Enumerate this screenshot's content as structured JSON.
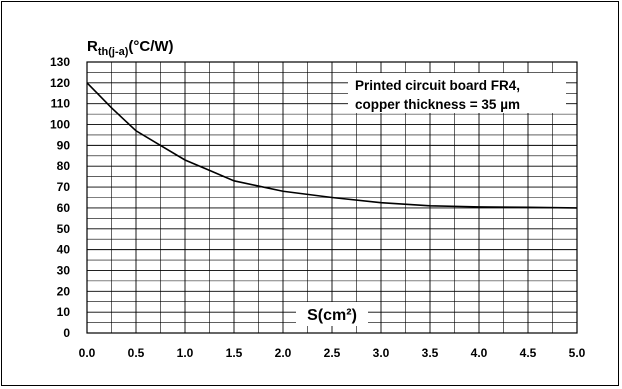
{
  "chart_data": {
    "type": "line",
    "ylabel_main": "R",
    "ylabel_sub": "th(j-a)",
    "ylabel_unit": "(°C/W)",
    "xlabel": "S(cm²)",
    "annotation": [
      "Printed circuit board FR4,",
      "copper thickness = 35 µm"
    ],
    "xlim": [
      0,
      5
    ],
    "ylim": [
      0,
      130
    ],
    "x_ticks": [
      "0.0",
      "0.5",
      "1.0",
      "1.5",
      "2.0",
      "2.5",
      "3.0",
      "3.5",
      "4.0",
      "4.5",
      "5.0"
    ],
    "y_ticks": [
      "0",
      "10",
      "20",
      "30",
      "40",
      "50",
      "60",
      "70",
      "80",
      "90",
      "100",
      "110",
      "120",
      "130"
    ],
    "grid": true,
    "series": [
      {
        "x": [
          0,
          0.25,
          0.5,
          0.75,
          1.0,
          1.25,
          1.5,
          1.75,
          2.0,
          2.5,
          3.0,
          3.5,
          4.0,
          4.5,
          5.0
        ],
        "y": [
          120,
          108,
          97,
          90,
          83,
          78,
          73,
          70.5,
          68,
          65,
          62.5,
          61,
          60.5,
          60.3,
          60
        ]
      }
    ]
  }
}
